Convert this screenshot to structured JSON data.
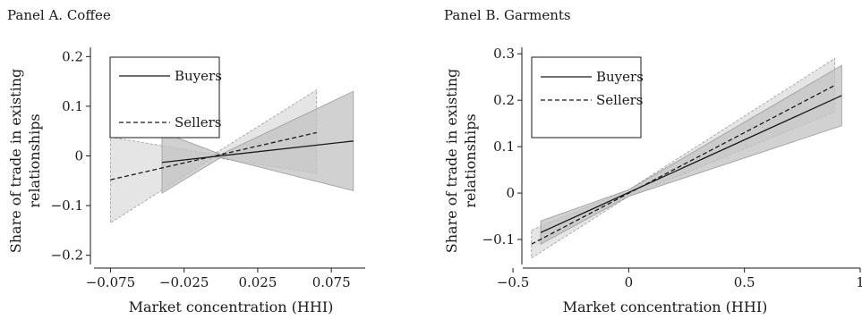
{
  "chart_data": [
    {
      "type": "line",
      "title": "Panel A. Coffee",
      "xlabel": "Market concentration (HHI)",
      "ylabel": [
        "Share of trade in existing",
        "relationships"
      ],
      "xlim": [
        -0.085,
        0.098
      ],
      "ylim": [
        -0.215,
        0.215
      ],
      "xticks": [
        -0.075,
        -0.025,
        0.025,
        0.075
      ],
      "xtick_labels": [
        "−0.075",
        "−0.025",
        "0.025",
        "0.075"
      ],
      "yticks": [
        -0.2,
        -0.1,
        0,
        0.1,
        0.2
      ],
      "ytick_labels": [
        "−0.2",
        "−0.1",
        "0",
        "0.1",
        "0.2"
      ],
      "grid": false,
      "legend_position": "top-left",
      "series": [
        {
          "name": "Buyers",
          "style": "solid",
          "x": [
            -0.04,
            0.09
          ],
          "y": [
            -0.013,
            0.03
          ],
          "ci_x": [
            -0.04,
            0.0,
            0.09
          ],
          "ci_lower": [
            -0.075,
            -0.003,
            -0.07
          ],
          "ci_upper": [
            0.048,
            0.003,
            0.13
          ],
          "band_color": "#c2c2c2"
        },
        {
          "name": "Sellers",
          "style": "dashed",
          "x": [
            -0.075,
            0.065
          ],
          "y": [
            -0.048,
            0.047
          ],
          "ci_x": [
            -0.075,
            -0.005,
            0.065
          ],
          "ci_lower": [
            -0.135,
            -0.003,
            -0.035
          ],
          "ci_upper": [
            0.038,
            0.003,
            0.133
          ],
          "band_color": "#dcdcdc"
        }
      ]
    },
    {
      "type": "line",
      "title": "Panel B. Garments",
      "xlabel": "Market concentration (HHI)",
      "ylabel": [
        "Share of trade in existing",
        "relationships"
      ],
      "xlim": [
        -0.45,
        1.0
      ],
      "ylim": [
        -0.15,
        0.31
      ],
      "xticks": [
        -0.5,
        0,
        0.5,
        1
      ],
      "xtick_labels": [
        "−0.5",
        "0",
        "0.5",
        "1"
      ],
      "yticks": [
        -0.1,
        0,
        0.1,
        0.2,
        0.3
      ],
      "ytick_labels": [
        "−0.1",
        "0",
        "0.1",
        "0.2",
        "0.3"
      ],
      "grid": false,
      "legend_position": "top-left",
      "series": [
        {
          "name": "Buyers",
          "style": "solid",
          "x": [
            -0.38,
            0.92
          ],
          "y": [
            -0.085,
            0.21
          ],
          "ci_x": [
            -0.38,
            0.0,
            0.92
          ],
          "ci_lower": [
            -0.11,
            -0.007,
            0.145
          ],
          "ci_upper": [
            -0.06,
            0.007,
            0.275
          ],
          "band_color": "#c2c2c2"
        },
        {
          "name": "Sellers",
          "style": "dashed",
          "x": [
            -0.42,
            0.89
          ],
          "y": [
            -0.11,
            0.232
          ],
          "ci_x": [
            -0.42,
            0.0,
            0.89
          ],
          "ci_lower": [
            -0.14,
            -0.007,
            0.175
          ],
          "ci_upper": [
            -0.08,
            0.007,
            0.29
          ],
          "band_color": "#dcdcdc"
        }
      ]
    }
  ]
}
